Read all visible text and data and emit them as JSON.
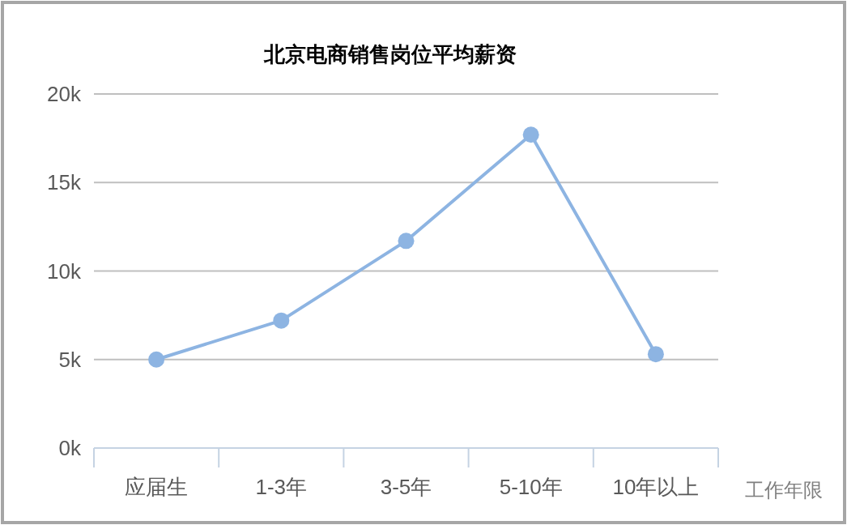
{
  "chart_data": {
    "type": "line",
    "title": "北京电商销售岗位平均薪资",
    "xlabel": "工作年限",
    "categories": [
      "应届生",
      "1-3年",
      "3-5年",
      "5-10年",
      "10年以上"
    ],
    "series": [
      {
        "color": "#8db4e2",
        "values": [
          5.0,
          7.2,
          11.7,
          17.7,
          5.3
        ]
      }
    ],
    "ylim": [
      0,
      20
    ],
    "yticks": [
      {
        "value": 0,
        "label": "0k"
      },
      {
        "value": 5,
        "label": "5k"
      },
      {
        "value": 10,
        "label": "10k"
      },
      {
        "value": 15,
        "label": "15k"
      },
      {
        "value": 20,
        "label": "20k"
      }
    ],
    "grid": "y",
    "marker": "circle",
    "line_style": "solid"
  }
}
